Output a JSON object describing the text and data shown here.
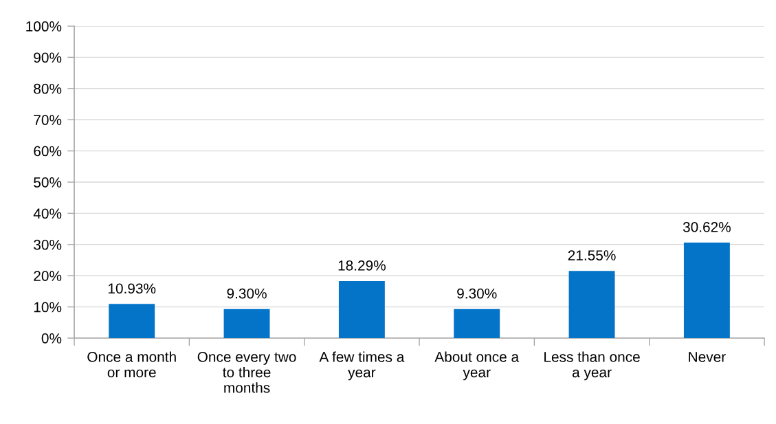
{
  "chart_data": {
    "type": "bar",
    "categories": [
      "Once a month\nor more",
      "Once every two\nto three\nmonths",
      "A few times a\nyear",
      "About once a\nyear",
      "Less than once\na year",
      "Never"
    ],
    "values": [
      10.93,
      9.3,
      18.29,
      9.3,
      21.55,
      30.62
    ],
    "value_labels": [
      "10.93%",
      "9.30%",
      "18.29%",
      "9.30%",
      "21.55%",
      "30.62%"
    ],
    "color": "#0474c9",
    "ylim": [
      0,
      100
    ],
    "yticks": [
      {
        "value": 0,
        "label": "0%"
      },
      {
        "value": 10,
        "label": "10%"
      },
      {
        "value": 20,
        "label": "20%"
      },
      {
        "value": 30,
        "label": "30%"
      },
      {
        "value": 40,
        "label": "40%"
      },
      {
        "value": 50,
        "label": "50%"
      },
      {
        "value": 60,
        "label": "60%"
      },
      {
        "value": 70,
        "label": "70%"
      },
      {
        "value": 80,
        "label": "80%"
      },
      {
        "value": 90,
        "label": "90%"
      },
      {
        "value": 100,
        "label": "100%"
      }
    ],
    "grid": "y"
  }
}
